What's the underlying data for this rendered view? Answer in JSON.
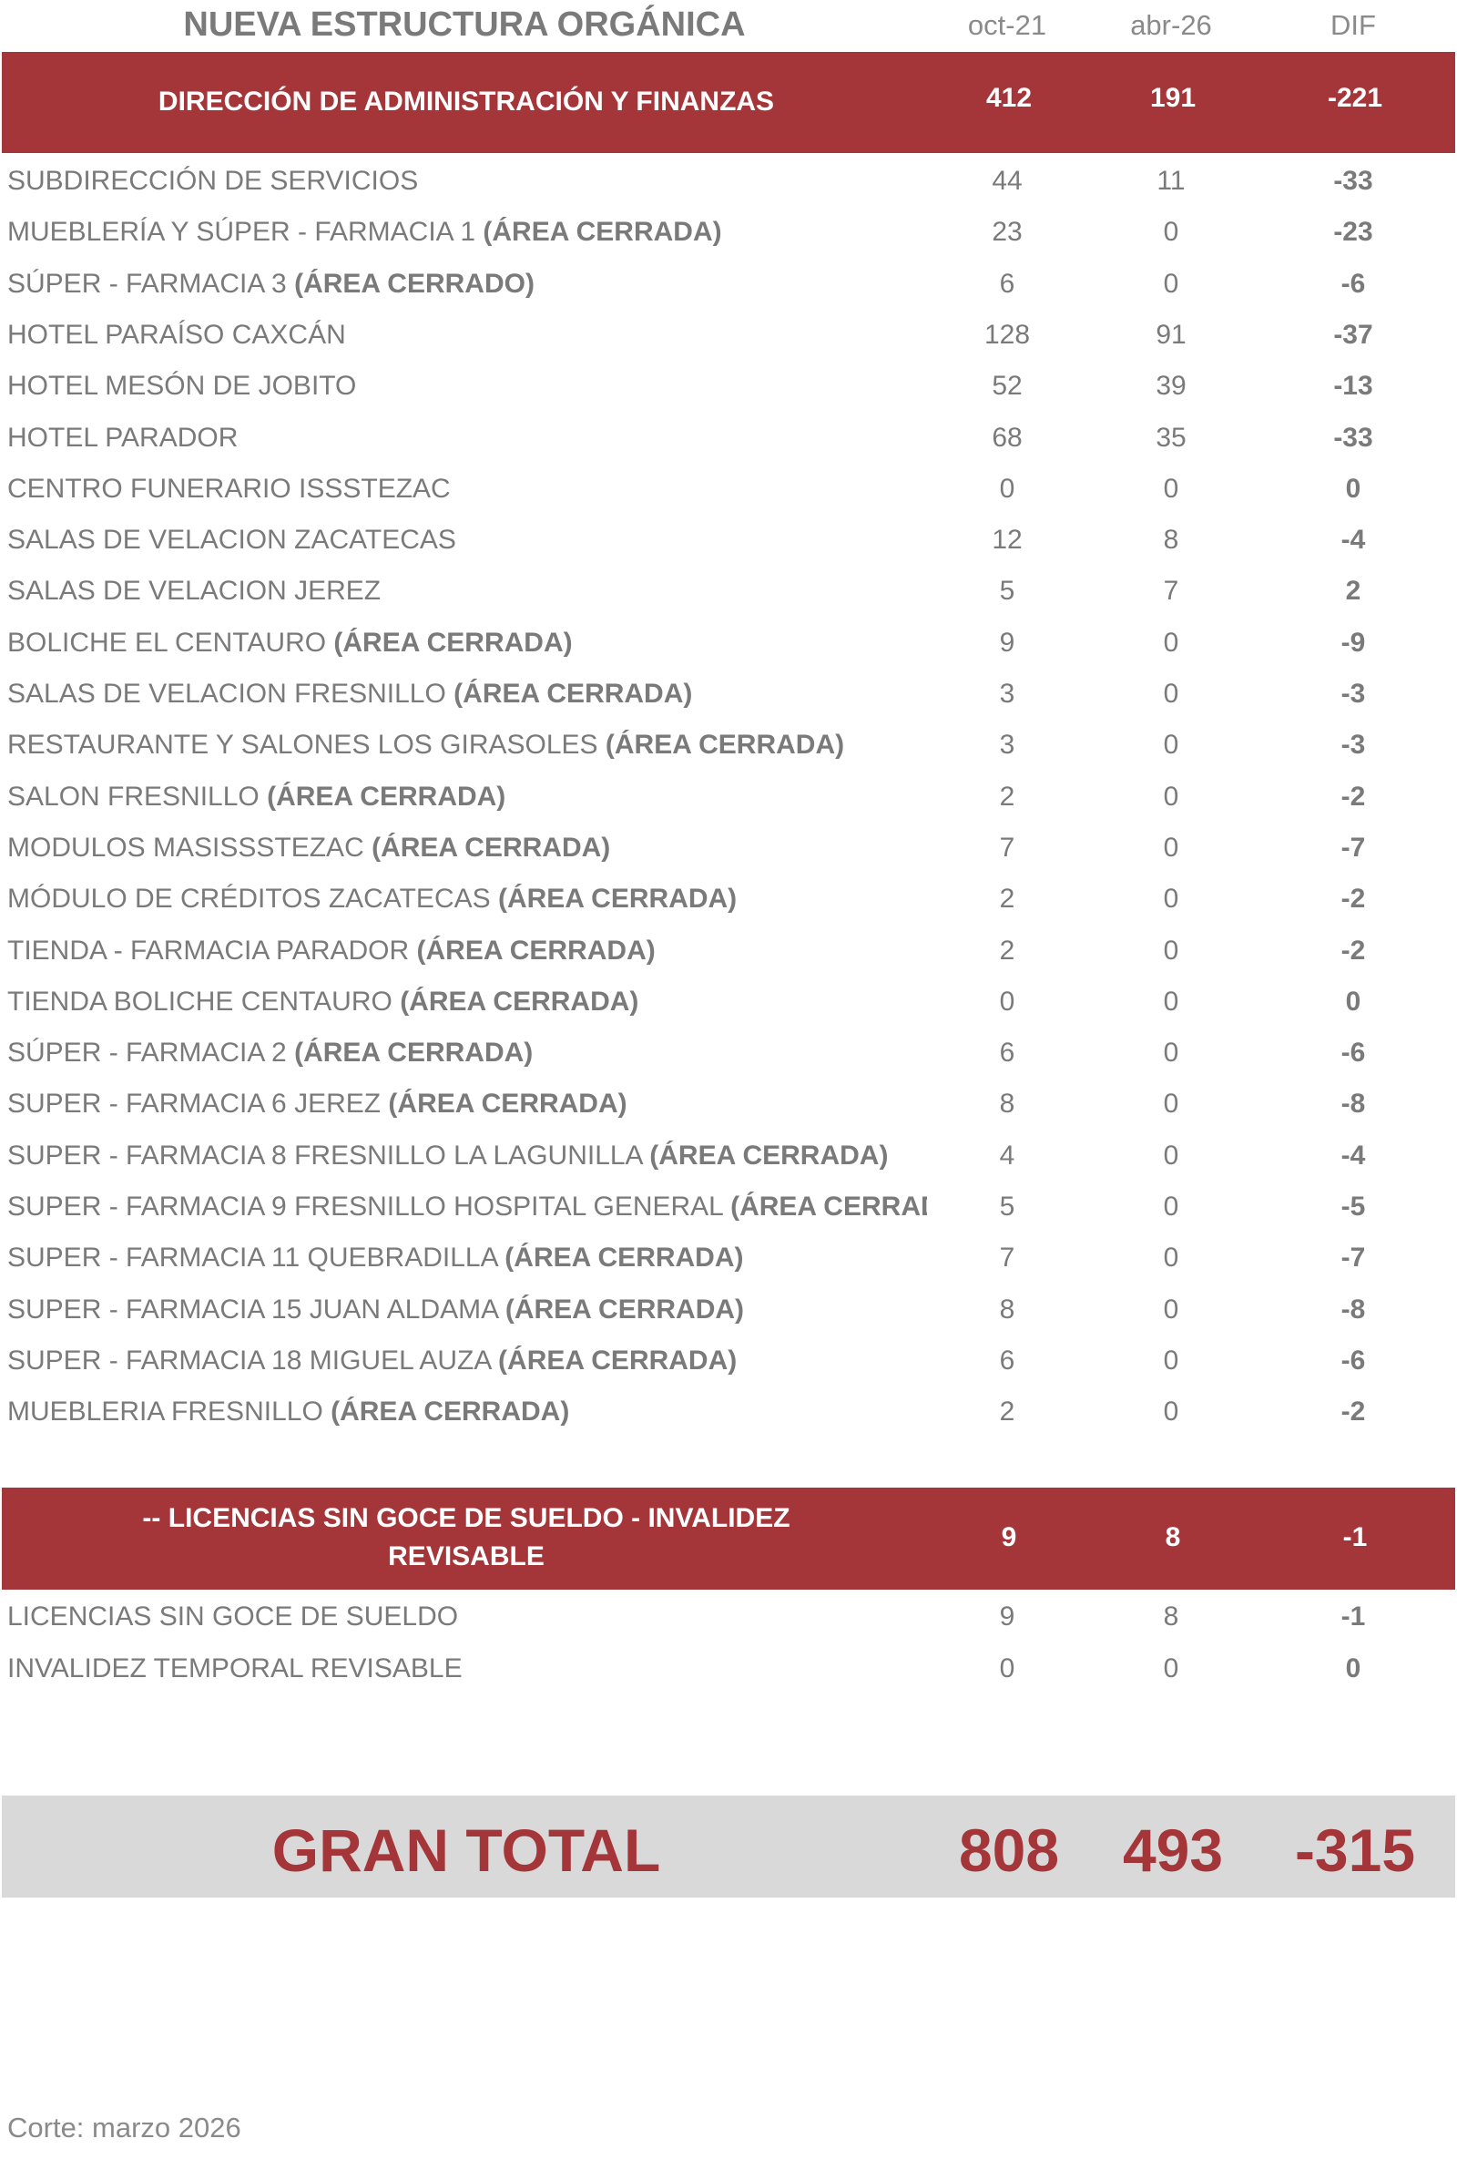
{
  "header": {
    "title": "NUEVA ESTRUCTURA ORGÁNICA",
    "col1": "oct-21",
    "col2": "abr-26",
    "col3": "DIF"
  },
  "section1": {
    "title": "DIRECCIÓN DE ADMINISTRACIÓN Y FINANZAS",
    "oct": "412",
    "abr": "191",
    "dif": "-221",
    "rows": [
      {
        "name": "SUBDIRECCIÓN DE SERVICIOS",
        "note": "",
        "oct": "44",
        "abr": "11",
        "dif": "-33"
      },
      {
        "name": "MUEBLERÍA Y SÚPER - FARMACIA 1 ",
        "note": "(ÁREA CERRADA)",
        "oct": "23",
        "abr": "0",
        "dif": "-23"
      },
      {
        "name": "SÚPER - FARMACIA 3 ",
        "note": "(ÁREA CERRADO)",
        "oct": "6",
        "abr": "0",
        "dif": "-6"
      },
      {
        "name": "HOTEL PARAÍSO CAXCÁN",
        "note": "",
        "oct": "128",
        "abr": "91",
        "dif": "-37"
      },
      {
        "name": "HOTEL MESÓN DE JOBITO",
        "note": "",
        "oct": "52",
        "abr": "39",
        "dif": "-13"
      },
      {
        "name": "HOTEL PARADOR",
        "note": "",
        "oct": "68",
        "abr": "35",
        "dif": "-33"
      },
      {
        "name": "CENTRO FUNERARIO ISSSTEZAC",
        "note": "",
        "oct": "0",
        "abr": "0",
        "dif": "0"
      },
      {
        "name": "SALAS DE VELACION ZACATECAS",
        "note": "",
        "oct": "12",
        "abr": "8",
        "dif": "-4"
      },
      {
        "name": "SALAS DE VELACION JEREZ",
        "note": "",
        "oct": "5",
        "abr": "7",
        "dif": "2"
      },
      {
        "name": "BOLICHE EL CENTAURO ",
        "note": "(ÁREA CERRADA)",
        "oct": "9",
        "abr": "0",
        "dif": "-9"
      },
      {
        "name": "SALAS DE VELACION FRESNILLO ",
        "note": "(ÁREA CERRADA)",
        "oct": "3",
        "abr": "0",
        "dif": "-3"
      },
      {
        "name": "RESTAURANTE Y SALONES LOS GIRASOLES ",
        "note": "(ÁREA CERRADA)",
        "oct": "3",
        "abr": "0",
        "dif": "-3"
      },
      {
        "name": "SALON FRESNILLO ",
        "note": "(ÁREA CERRADA)",
        "oct": "2",
        "abr": "0",
        "dif": "-2"
      },
      {
        "name": "MODULOS MASISSSTEZAC ",
        "note": "(ÁREA CERRADA)",
        "oct": "7",
        "abr": "0",
        "dif": "-7"
      },
      {
        "name": "MÓDULO DE CRÉDITOS ZACATECAS ",
        "note": "(ÁREA CERRADA)",
        "oct": "2",
        "abr": "0",
        "dif": "-2"
      },
      {
        "name": "TIENDA - FARMACIA PARADOR ",
        "note": "(ÁREA CERRADA)",
        "oct": "2",
        "abr": "0",
        "dif": "-2"
      },
      {
        "name": "TIENDA BOLICHE CENTAURO ",
        "note": "(ÁREA CERRADA)",
        "oct": "0",
        "abr": "0",
        "dif": "0"
      },
      {
        "name": "SÚPER - FARMACIA 2 ",
        "note": "(ÁREA CERRADA)",
        "oct": "6",
        "abr": "0",
        "dif": "-6"
      },
      {
        "name": "SUPER - FARMACIA 6 JEREZ ",
        "note": "(ÁREA CERRADA)",
        "oct": "8",
        "abr": "0",
        "dif": "-8"
      },
      {
        "name": "SUPER - FARMACIA 8 FRESNILLO LA LAGUNILLA ",
        "note": "(ÁREA CERRADA)",
        "oct": "4",
        "abr": "0",
        "dif": "-4"
      },
      {
        "name": "SUPER - FARMACIA 9 FRESNILLO HOSPITAL GENERAL  ",
        "note": "(ÁREA CERRADA)",
        "oct": "5",
        "abr": "0",
        "dif": "-5"
      },
      {
        "name": "SUPER - FARMACIA 11 QUEBRADILLA ",
        "note": "(ÁREA CERRADA)",
        "oct": "7",
        "abr": "0",
        "dif": "-7"
      },
      {
        "name": "SUPER - FARMACIA 15 JUAN ALDAMA ",
        "note": "(ÁREA CERRADA)",
        "oct": "8",
        "abr": "0",
        "dif": "-8"
      },
      {
        "name": "SUPER - FARMACIA 18 MIGUEL AUZA ",
        "note": "(ÁREA CERRADA)",
        "oct": "6",
        "abr": "0",
        "dif": "-6"
      },
      {
        "name": "MUEBLERIA FRESNILLO ",
        "note": "(ÁREA CERRADA)",
        "oct": "2",
        "abr": "0",
        "dif": "-2"
      }
    ]
  },
  "section2": {
    "title_line1": "-- LICENCIAS SIN GOCE DE SUELDO - INVALIDEZ",
    "title_line2": "REVISABLE",
    "oct": "9",
    "abr": "8",
    "dif": "-1",
    "rows": [
      {
        "name": "LICENCIAS SIN GOCE DE SUELDO",
        "note": "",
        "oct": "9",
        "abr": "8",
        "dif": "-1"
      },
      {
        "name": "INVALIDEZ TEMPORAL REVISABLE",
        "note": "",
        "oct": "0",
        "abr": "0",
        "dif": "0"
      }
    ]
  },
  "total": {
    "label": "GRAN TOTAL",
    "oct": "808",
    "abr": "493",
    "dif": "-315"
  },
  "footer": "Corte: marzo 2026",
  "colors": {
    "accent": "#a4363a",
    "text": "#7a7a7a",
    "total_bg": "#d9d9d9"
  }
}
